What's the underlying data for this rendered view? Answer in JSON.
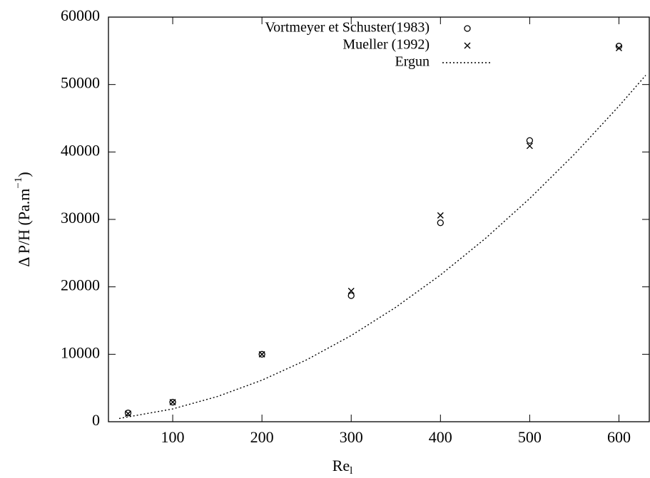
{
  "chart_data": {
    "type": "scatter",
    "x_label": "Re",
    "x_label_sub": "l",
    "y_label": "Δ P/H (Pa.m",
    "y_label_sup": "−1",
    "y_label_end": ")",
    "xlim": [
      28,
      634
    ],
    "xticks": [
      100,
      200,
      300,
      400,
      500,
      600
    ],
    "ylim": [
      0,
      60000
    ],
    "yticks": [
      0,
      10000,
      20000,
      30000,
      40000,
      50000,
      60000
    ],
    "legend": "top",
    "series": [
      {
        "name": "Vortmeyer et Schuster(1983)",
        "style": "circle",
        "color": "#000000",
        "x": [
          50,
          100,
          200,
          300,
          400,
          500,
          600
        ],
        "values": [
          1300,
          2900,
          10000,
          18700,
          29500,
          41700,
          55700
        ]
      },
      {
        "name": "Mueller (1992)",
        "style": "cross",
        "color": "#000000",
        "x": [
          50,
          100,
          200,
          300,
          400,
          500,
          600
        ],
        "values": [
          1200,
          2900,
          10000,
          19400,
          30600,
          40900,
          55400
        ]
      },
      {
        "name": "Ergun",
        "style": "dotted-line",
        "color": "#000000",
        "x": [
          40,
          100,
          150,
          200,
          250,
          300,
          350,
          400,
          450,
          500,
          550,
          600,
          630
        ],
        "values": [
          477,
          1900,
          3735,
          6160,
          9175,
          12780,
          16975,
          21760,
          27135,
          33100,
          39655,
          46800,
          51370
        ]
      }
    ]
  }
}
